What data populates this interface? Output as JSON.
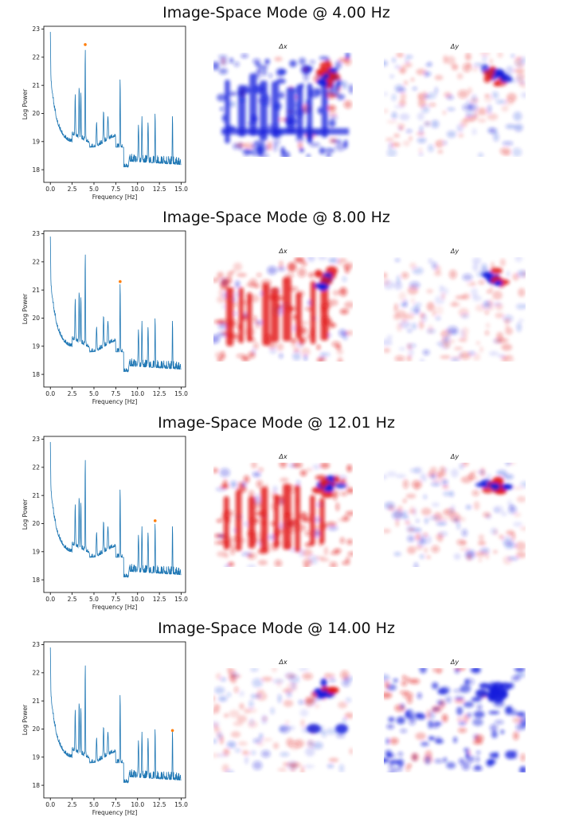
{
  "chart_data": [
    {
      "type": "line",
      "title": "Image-Space Mode @ 4.00 Hz",
      "xlabel": "Frequency [Hz]",
      "ylabel": "Log Power",
      "xlim": [
        -0.75,
        15.5
      ],
      "ylim": [
        17.55,
        23.1
      ],
      "xticks": [
        "0.0",
        "2.5",
        "5.0",
        "7.5",
        "10.0",
        "12.5",
        "15.0"
      ],
      "yticks": [
        "18",
        "19",
        "20",
        "21",
        "22",
        "23"
      ],
      "series": [
        {
          "color": "#1f77b4"
        }
      ],
      "highlight": {
        "x": 4.0,
        "y": 22.45,
        "color": "#ff7f0e"
      },
      "heatmaps": [
        {
          "title": "Δx",
          "cmap": "bwr",
          "dominant": "blue"
        },
        {
          "title": "Δy",
          "cmap": "bwr",
          "dominant": "mixed"
        }
      ]
    },
    {
      "type": "line",
      "title": "Image-Space Mode @ 8.00 Hz",
      "xlabel": "Frequency [Hz]",
      "ylabel": "Log Power",
      "xlim": [
        -0.75,
        15.5
      ],
      "ylim": [
        17.55,
        23.1
      ],
      "xticks": [
        "0.0",
        "2.5",
        "5.0",
        "7.5",
        "10.0",
        "12.5",
        "15.0"
      ],
      "yticks": [
        "18",
        "19",
        "20",
        "21",
        "22",
        "23"
      ],
      "series": [
        {
          "color": "#1f77b4"
        }
      ],
      "highlight": {
        "x": 8.0,
        "y": 21.3,
        "color": "#ff7f0e"
      },
      "heatmaps": [
        {
          "title": "Δx",
          "cmap": "bwr",
          "dominant": "red"
        },
        {
          "title": "Δy",
          "cmap": "bwr",
          "dominant": "mixed"
        }
      ]
    },
    {
      "type": "line",
      "title": "Image-Space Mode @ 12.01 Hz",
      "xlabel": "Frequency [Hz]",
      "ylabel": "Log Power",
      "xlim": [
        -0.75,
        15.5
      ],
      "ylim": [
        17.55,
        23.1
      ],
      "xticks": [
        "0.0",
        "2.5",
        "5.0",
        "7.5",
        "10.0",
        "12.5",
        "15.0"
      ],
      "yticks": [
        "18",
        "19",
        "20",
        "21",
        "22",
        "23"
      ],
      "series": [
        {
          "color": "#1f77b4"
        }
      ],
      "highlight": {
        "x": 12.01,
        "y": 20.1,
        "color": "#ff7f0e"
      },
      "heatmaps": [
        {
          "title": "Δx",
          "cmap": "bwr",
          "dominant": "red"
        },
        {
          "title": "Δy",
          "cmap": "bwr",
          "dominant": "mixed"
        }
      ]
    },
    {
      "type": "line",
      "title": "Image-Space Mode @ 14.00 Hz",
      "xlabel": "Frequency [Hz]",
      "ylabel": "Log Power",
      "xlim": [
        -0.75,
        15.5
      ],
      "ylim": [
        17.55,
        23.1
      ],
      "xticks": [
        "0.0",
        "2.5",
        "5.0",
        "7.5",
        "10.0",
        "12.5",
        "15.0"
      ],
      "yticks": [
        "18",
        "19",
        "20",
        "21",
        "22",
        "23"
      ],
      "series": [
        {
          "color": "#1f77b4"
        }
      ],
      "highlight": {
        "x": 14.0,
        "y": 19.95,
        "color": "#ff7f0e"
      },
      "heatmaps": [
        {
          "title": "Δx",
          "cmap": "bwr",
          "dominant": "mixed"
        },
        {
          "title": "Δy",
          "cmap": "bwr",
          "dominant": "blue"
        }
      ]
    }
  ]
}
